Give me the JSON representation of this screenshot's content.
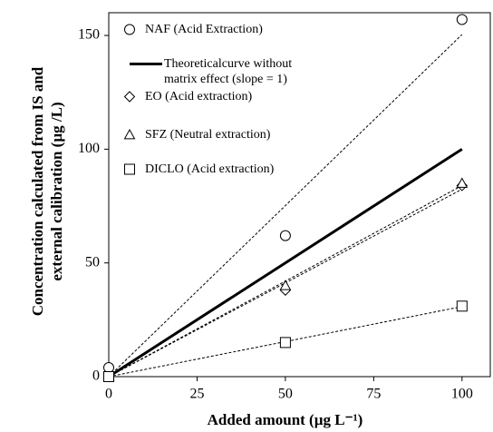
{
  "chart_data": {
    "type": "scatter",
    "x_label": "Added amount (µg L⁻¹)",
    "y_label": "Concentration calculated from IS and external calibration  (µg /L)",
    "xlim": [
      0,
      108
    ],
    "xticks": [
      0,
      25,
      50,
      75,
      100
    ],
    "ylim": [
      0,
      160
    ],
    "yticks": [
      0,
      50,
      100,
      150
    ],
    "legend": "upper left",
    "series": [
      {
        "name": "NAF (Acid Extraction)",
        "color": "#000000",
        "marker": "circle",
        "trendline": true,
        "x": [
          0,
          50,
          100
        ],
        "values": [
          4,
          62,
          157
        ]
      },
      {
        "name": "Theoreticalcurve without matrix effect (slope = 1)",
        "color": "#000000",
        "marker": "line",
        "x": [
          0,
          100
        ],
        "values": [
          0,
          100
        ]
      },
      {
        "name": "EO (Acid extraction)",
        "color": "#000000",
        "marker": "diamond",
        "trendline": true,
        "x": [
          0,
          50,
          100
        ],
        "values": [
          0,
          38,
          84
        ]
      },
      {
        "name": "SFZ (Neutral extraction)",
        "color": "#000000",
        "marker": "triangle",
        "trendline": true,
        "x": [
          0,
          50,
          100
        ],
        "values": [
          0,
          40,
          85
        ]
      },
      {
        "name": "DICLO (Acid extraction)",
        "color": "#000000",
        "marker": "square",
        "trendline": true,
        "x": [
          0,
          50,
          100
        ],
        "values": [
          0,
          15,
          31
        ]
      }
    ]
  }
}
